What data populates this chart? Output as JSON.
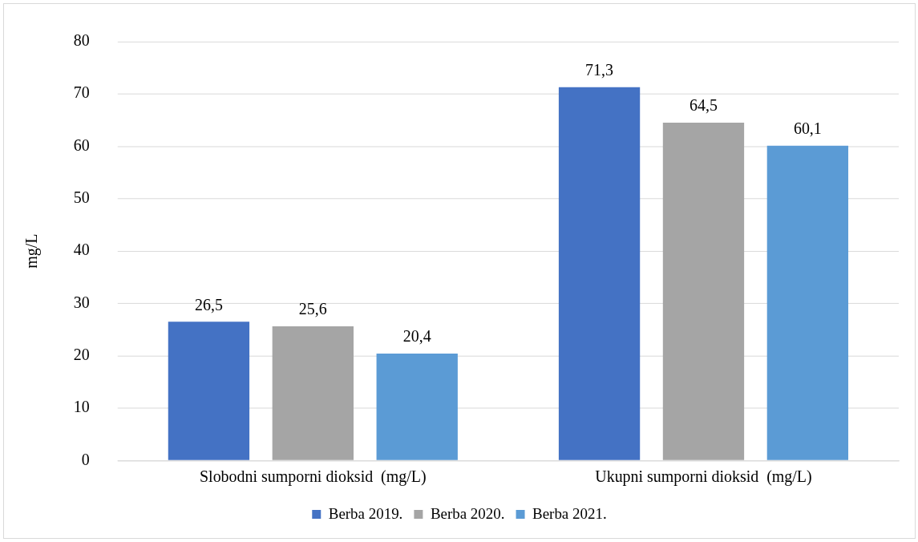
{
  "chart_data": {
    "type": "bar",
    "ylabel": "mg/L",
    "categories": [
      "Slobodni sumporni dioksid  (mg/L)",
      "Ukupni sumporni dioksid  (mg/L)"
    ],
    "series": [
      {
        "name": "Berba 2019.",
        "color": "#4472c4",
        "values": [
          26.5,
          71.3
        ],
        "value_labels": [
          "26,5",
          "71,3"
        ]
      },
      {
        "name": "Berba 2020.",
        "color": "#a5a5a5",
        "values": [
          25.6,
          64.5
        ],
        "value_labels": [
          "25,6",
          "64,5"
        ]
      },
      {
        "name": "Berba 2021.",
        "color": "#5b9bd5",
        "values": [
          20.4,
          60.1
        ],
        "value_labels": [
          "20,4",
          "60,1"
        ]
      }
    ],
    "ylim": [
      0,
      80
    ],
    "yticks": [
      0,
      10,
      20,
      30,
      40,
      50,
      60,
      70,
      80
    ],
    "grid": "y",
    "legend": "bottom"
  }
}
